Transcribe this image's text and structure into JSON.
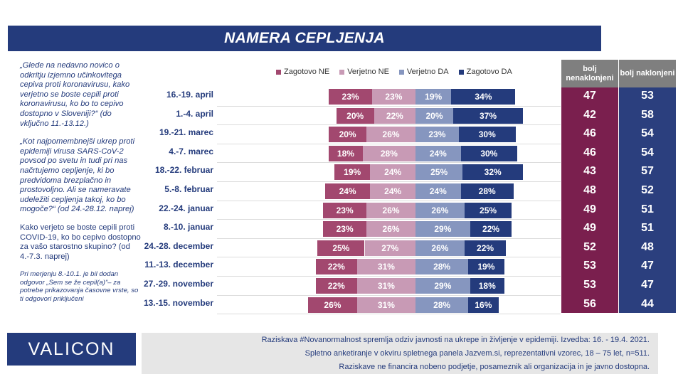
{
  "title": "NAMERA CEPLJENJA",
  "left_text": {
    "q1": "„Glede na nedavno novico o odkritju izjemno učinkovitega cepiva proti koronavirusu, kako verjetno se boste cepili proti koronavirusu, ko bo to cepivo dostopno v Sloveniji?“ (do vključno 11.-13.12.)",
    "q2": "„Kot najpomembnejši ukrep proti epidemiji virusa SARS-CoV-2 povsod po svetu in tudi pri nas načrtujemo cepljenje, ki bo predvidoma brezplačno in prostovoljno. Ali se nameravate udeležiti cepljenja takoj, ko bo mogoče?“ (od 24.-28.12. naprej)",
    "q3": "Kako verjeto se boste cepili proti COVID-19, ko bo cepivo dostopno za vašo starostno skupino? (od 4.-7.3. naprej)",
    "note": "Pri merjenju 8.-10.1. je bil dodan odgovor „Sem se že cepil(a)“– za potrebe prikazovanja časovne vrste, so ti odgovori priključeni"
  },
  "legend": [
    "Zagotovo NE",
    "Verjetno NE",
    "Verjetno DA",
    "Zagotovo DA"
  ],
  "colors": {
    "zagotovo_ne": "#a2486f",
    "verjetno_ne": "#c89ab5",
    "verjetno_da": "#8696bf",
    "zagotovo_da": "#243b7c",
    "col_nenaklonjeni": "#7a1f4e",
    "col_naklonjeni": "#2b3f7e",
    "header_gray": "#7f7f7f",
    "title_bar": "#243b7c"
  },
  "columns": {
    "nenaklonjeni_head": "bolj nenaklonjeni",
    "naklonjeni_head": "bolj naklonjeni"
  },
  "chart_data": {
    "type": "bar",
    "orientation": "horizontal",
    "stacking": "diverging",
    "title": "NAMERA CEPLJENJA",
    "categories": [
      "16.-19. april",
      "1.-4. april",
      "19.-21. marec",
      "4.-7. marec",
      "18.-22. februar",
      "5.-8. februar",
      "22.-24. januar",
      "8.-10. januar",
      "24.-28. december",
      "11.-13. december",
      "27.-29. november",
      "13.-15. november"
    ],
    "series": [
      {
        "name": "Zagotovo NE",
        "values": [
          23,
          20,
          20,
          18,
          19,
          24,
          23,
          23,
          25,
          22,
          22,
          26
        ]
      },
      {
        "name": "Verjetno NE",
        "values": [
          23,
          22,
          26,
          28,
          24,
          24,
          26,
          26,
          27,
          31,
          31,
          31
        ]
      },
      {
        "name": "Verjetno DA",
        "values": [
          19,
          20,
          23,
          24,
          25,
          24,
          26,
          29,
          26,
          28,
          29,
          28
        ]
      },
      {
        "name": "Zagotovo DA",
        "values": [
          34,
          37,
          30,
          30,
          32,
          28,
          25,
          22,
          22,
          19,
          18,
          16
        ]
      }
    ],
    "bolj_nenaklonjeni": [
      47,
      42,
      46,
      46,
      43,
      48,
      49,
      49,
      52,
      53,
      53,
      56
    ],
    "bolj_naklonjeni": [
      53,
      58,
      54,
      54,
      57,
      52,
      51,
      51,
      48,
      47,
      47,
      44
    ],
    "legend_position": "top"
  },
  "footer": {
    "line1": "Raziskava #Novanormalnost spremlja odziv javnosti na ukrepe in življenje v epidemiji. Izvedba: 16. - 19.4. 2021.",
    "line2": "Spletno anketiranje v okviru spletnega panela Jazvem.si, reprezentativni vzorec, 18 – 75 let, n=511.",
    "line3": "Raziskave ne financira nobeno podjetje, posameznik ali organizacija in je javno dostopna."
  },
  "logo": "VALICON"
}
